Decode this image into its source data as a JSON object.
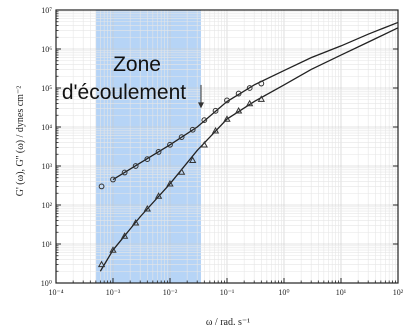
{
  "chart_data": {
    "type": "scatter",
    "xlabel": "ω / rad. s⁻¹",
    "ylabel": "G' (ω), G'' (ω) / dynes cm⁻²",
    "xscale": "log",
    "yscale": "log",
    "xlim": [
      0.0001,
      100
    ],
    "ylim": [
      1,
      10000000
    ],
    "x_ticks": [
      "10⁻⁴",
      "10⁻³",
      "10⁻²",
      "10⁻¹",
      "10⁰",
      "10¹",
      "10²"
    ],
    "y_ticks": [
      "10⁰",
      "10¹",
      "10²",
      "10³",
      "10⁴",
      "10⁵",
      "10⁶",
      "10⁷"
    ],
    "grid": true,
    "annotation": {
      "line1": "Zone",
      "line2": "d'écoulement"
    },
    "zone_x_range": [
      0.0005,
      0.035
    ],
    "zone_color": "#a9cdf4",
    "series": [
      {
        "marker": "circle",
        "x": [
          0.00063,
          0.001,
          0.0016,
          0.0025,
          0.004,
          0.0063,
          0.01,
          0.016,
          0.025,
          0.04,
          0.063,
          0.1,
          0.16,
          0.25,
          0.4
        ],
        "y": [
          300,
          450,
          680,
          1000,
          1500,
          2300,
          3500,
          5500,
          8500,
          15000,
          26000,
          48000,
          72000,
          100000,
          130000
        ]
      },
      {
        "marker": "triangle",
        "x": [
          0.00063,
          0.001,
          0.0016,
          0.0025,
          0.004,
          0.0063,
          0.01,
          0.016,
          0.025,
          0.04,
          0.063,
          0.1,
          0.16,
          0.25,
          0.4
        ],
        "y": [
          3,
          7,
          16,
          35,
          80,
          170,
          350,
          700,
          1400,
          3500,
          8000,
          16000,
          26000,
          40000,
          52000
        ]
      }
    ],
    "fit_lines": [
      {
        "x": [
          0.001,
          0.003,
          0.01,
          0.03,
          0.1,
          0.3,
          1,
          3,
          10,
          30,
          100
        ],
        "y": [
          450,
          1200,
          3500,
          10000,
          45000,
          120000,
          280000,
          600000,
          1200000,
          2400000,
          4800000
        ]
      },
      {
        "x": [
          0.0006,
          0.001,
          0.003,
          0.01,
          0.03,
          0.1,
          0.3,
          1,
          3,
          10,
          30,
          100
        ],
        "y": [
          2,
          7,
          50,
          350,
          2500,
          16000,
          45000,
          120000,
          300000,
          700000,
          1500000,
          3500000
        ]
      }
    ],
    "arrow": {
      "x": 0.035,
      "y_from": 120000,
      "y_to": 30000
    }
  }
}
